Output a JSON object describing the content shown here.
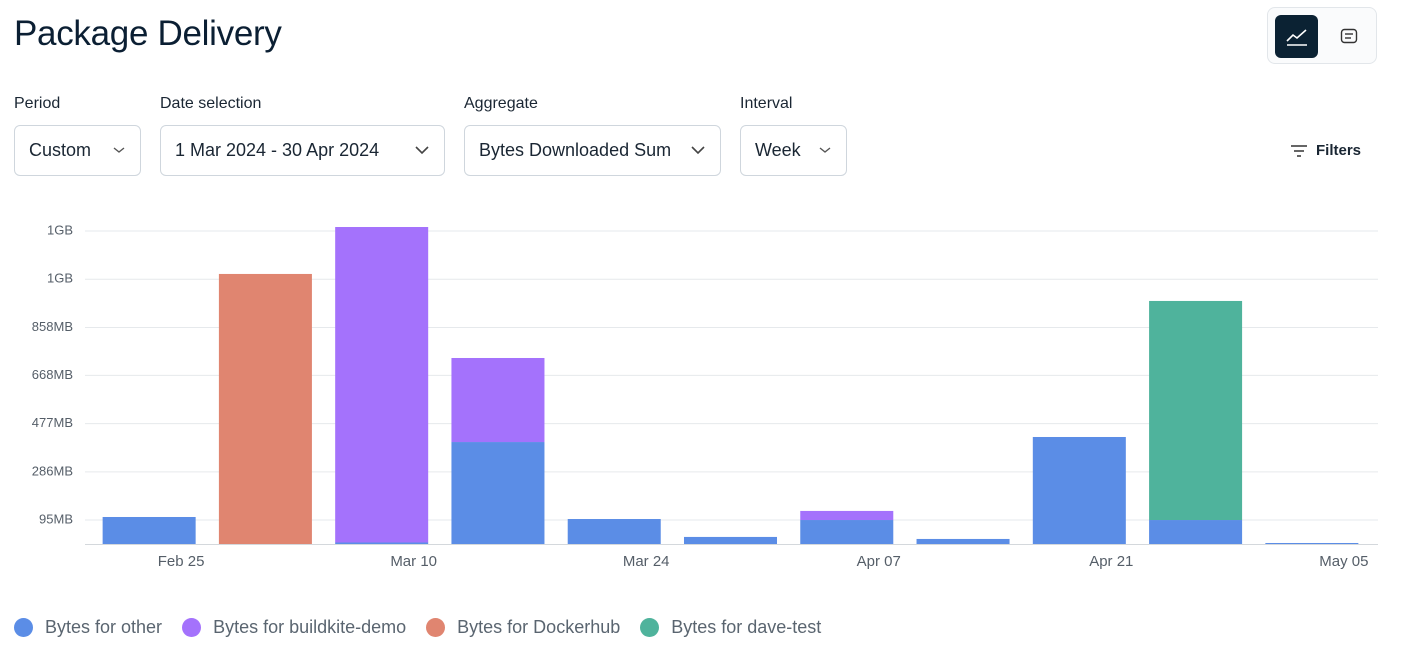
{
  "header": {
    "title": "Package Delivery"
  },
  "controls": [
    {
      "label": "Period",
      "value": "Custom"
    },
    {
      "label": "Date selection",
      "value": "1 Mar 2024 - 30 Apr 2024"
    },
    {
      "label": "Aggregate",
      "value": "Bytes Downloaded Sum"
    },
    {
      "label": "Interval",
      "value": "Week"
    }
  ],
  "filters": "Filters",
  "chart_data": {
    "type": "stacked_bar",
    "categories": [
      null,
      null,
      null,
      null,
      null,
      null,
      null,
      null,
      null,
      null,
      null
    ],
    "x_labels": [
      "Feb 25",
      "Mar 10",
      "Mar 24",
      "Apr 07",
      "Apr 21",
      "May 05"
    ],
    "series": [
      {
        "name": "Bytes for other",
        "color": "#5b8de6",
        "values": [
          107,
          null,
          6,
          404,
          99,
          28,
          95,
          20,
          424,
          95,
          4
        ]
      },
      {
        "name": "Bytes for buildkite-demo",
        "color": "#a472fc",
        "values": [
          null,
          null,
          1250,
          333,
          null,
          null,
          36,
          null,
          null,
          null,
          null
        ]
      },
      {
        "name": "Bytes for Dockerhub",
        "color": "#e08570",
        "values": [
          null,
          1070,
          null,
          null,
          null,
          null,
          null,
          null,
          null,
          null,
          null
        ]
      },
      {
        "name": "Bytes for dave-test",
        "color": "#4fb39c",
        "values": [
          null,
          null,
          null,
          null,
          null,
          null,
          null,
          null,
          null,
          868,
          null
        ]
      }
    ],
    "ylim": [
      0,
      1260
    ],
    "yticks": [
      {
        "value": 95,
        "label": "95MB"
      },
      {
        "value": 286,
        "label": "286MB"
      },
      {
        "value": 477,
        "label": "477MB"
      },
      {
        "value": 668,
        "label": "668MB"
      },
      {
        "value": 858,
        "label": "858MB"
      },
      {
        "value": 1049,
        "label": "1GB"
      },
      {
        "value": 1240,
        "label": "1GB"
      }
    ],
    "grid": true
  }
}
